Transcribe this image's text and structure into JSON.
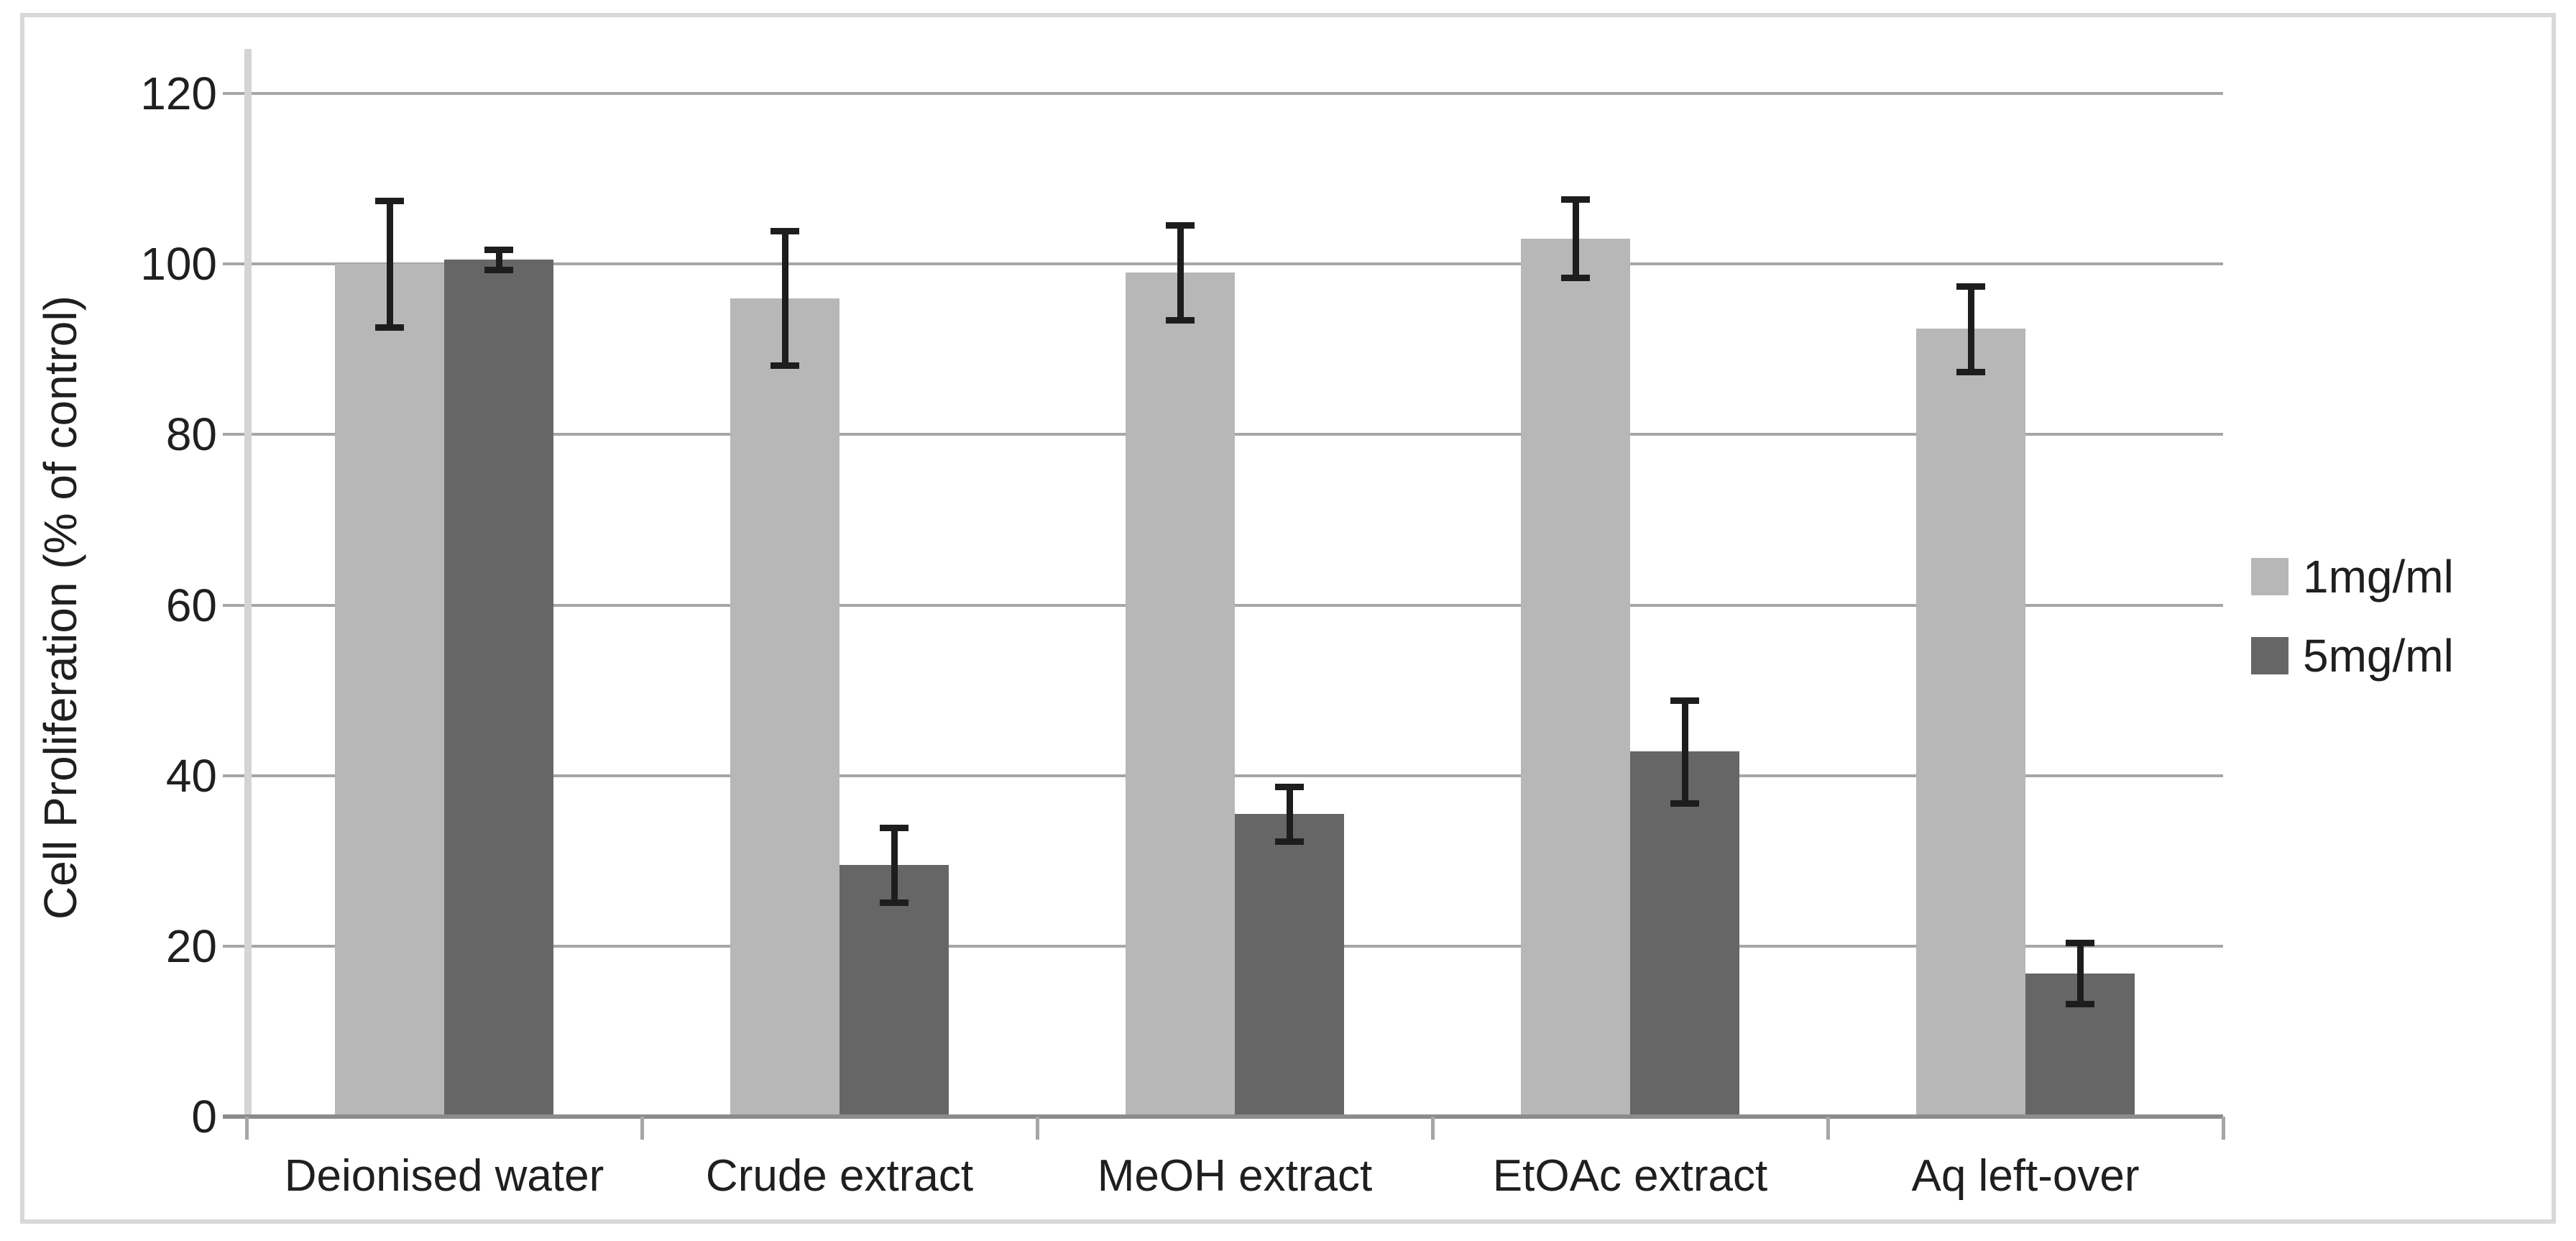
{
  "chart_data": {
    "type": "bar",
    "title": "",
    "categories": [
      "Deionised water",
      "Crude extract",
      "MeOH extract",
      "EtOAc extract",
      "Aq left-over"
    ],
    "series": [
      {
        "name": "1mg/ml",
        "color": "#b7b7b7",
        "values": [
          100,
          96,
          99,
          103,
          92.4
        ],
        "errors": [
          7.4,
          7.9,
          5.6,
          4.6,
          5.0
        ]
      },
      {
        "name": "5mg/ml",
        "color": "#666666",
        "values": [
          100.5,
          29.5,
          35.5,
          42.8,
          16.8
        ],
        "errors": [
          1.2,
          4.4,
          3.2,
          6.0,
          3.6
        ]
      }
    ],
    "xlabel": "",
    "ylabel": "Cell Proliferation (% of control)",
    "ylim": [
      0,
      120
    ],
    "yticks": [
      0,
      20,
      40,
      60,
      80,
      100,
      120
    ],
    "grid": true,
    "error_bars": true,
    "legend_position": "right"
  },
  "palette": {
    "gridline": "#a6a6a6",
    "x_axis_line": "#8c8c8c",
    "y_axis_line": "#d4d4d4",
    "error_bar": "#1d1d1d",
    "text": "#1f1f1f",
    "border": "#d8d8d8",
    "background": "#ffffff"
  }
}
